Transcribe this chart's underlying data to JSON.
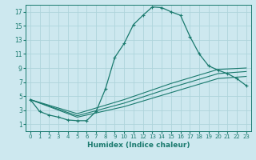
{
  "xlabel": "Humidex (Indice chaleur)",
  "ylabel": "",
  "background_color": "#cde8ef",
  "grid_color": "#aed4db",
  "line_color": "#1a7a6e",
  "xlim": [
    -0.5,
    23.5
  ],
  "ylim": [
    0,
    18
  ],
  "xticks": [
    0,
    1,
    2,
    3,
    4,
    5,
    6,
    7,
    8,
    9,
    10,
    11,
    12,
    13,
    14,
    15,
    16,
    17,
    18,
    19,
    20,
    21,
    22,
    23
  ],
  "yticks": [
    1,
    3,
    5,
    7,
    9,
    11,
    13,
    15,
    17
  ],
  "main_x": [
    0,
    1,
    2,
    3,
    4,
    5,
    6,
    7,
    8,
    9,
    10,
    11,
    12,
    13,
    14,
    15,
    16,
    17,
    18,
    19,
    20,
    21,
    22,
    23
  ],
  "main_y": [
    4.5,
    2.8,
    2.3,
    2.0,
    1.6,
    1.5,
    1.5,
    2.8,
    6.0,
    10.5,
    12.5,
    15.2,
    16.5,
    17.7,
    17.6,
    17.0,
    16.5,
    13.5,
    11.0,
    9.3,
    8.7,
    8.2,
    7.5,
    6.5
  ],
  "band1_x": [
    0,
    5,
    10,
    15,
    20,
    23
  ],
  "band1_y": [
    4.5,
    2.0,
    3.5,
    5.5,
    7.5,
    7.8
  ],
  "band2_x": [
    0,
    5,
    10,
    15,
    20,
    23
  ],
  "band2_y": [
    4.5,
    2.2,
    4.0,
    6.2,
    8.2,
    8.5
  ],
  "band3_x": [
    0,
    5,
    10,
    15,
    20,
    23
  ],
  "band3_y": [
    4.5,
    2.5,
    4.5,
    6.8,
    8.8,
    9.0
  ]
}
